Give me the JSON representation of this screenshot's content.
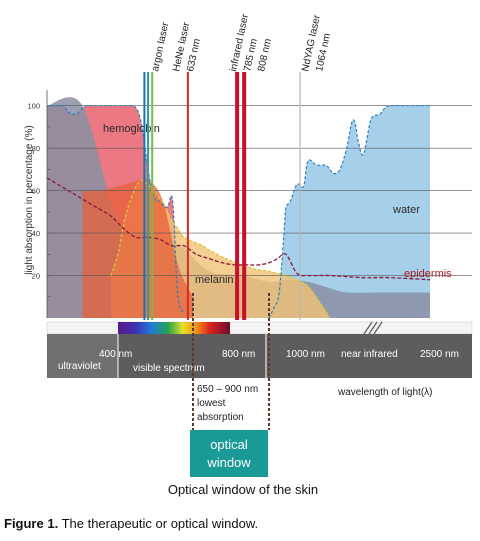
{
  "chart_data": {
    "type": "area",
    "ylabel": "light absorption in percentage (%)",
    "yticks": [
      20,
      40,
      60,
      80,
      100
    ],
    "ylim": [
      0,
      106
    ],
    "xlabel": "wavelength of light(λ)",
    "series": [
      {
        "name": "hemoglobin",
        "color": "#e8606c",
        "x": [
          200,
          210,
          220,
          230,
          240,
          245,
          250,
          255,
          260,
          270,
          280,
          290,
          300,
          310,
          320,
          330,
          340,
          350,
          360,
          370,
          380,
          390,
          400,
          410,
          420,
          430,
          440,
          450,
          460,
          470,
          480,
          490,
          500,
          510,
          520,
          530,
          540,
          550,
          560,
          570,
          575,
          580,
          585,
          590,
          595,
          600,
          605,
          610,
          615,
          620
        ],
        "y": [
          100,
          100,
          100,
          100,
          100,
          100,
          100,
          98,
          97,
          96,
          96,
          97,
          99,
          100,
          100,
          100,
          100,
          100,
          100,
          100,
          100,
          100,
          100,
          100,
          100,
          100,
          100,
          100,
          99,
          96,
          90,
          80,
          70,
          62,
          57,
          55,
          55,
          53,
          52,
          54,
          57,
          57,
          50,
          35,
          20,
          10,
          6,
          4,
          3,
          2
        ]
      },
      {
        "name": "melanin",
        "color": "#f3c276",
        "x": [
          380,
          400,
          420,
          440,
          460,
          470,
          480,
          490,
          500,
          520,
          540,
          560,
          580,
          600,
          620,
          650,
          680,
          700,
          750,
          800,
          850,
          900,
          950,
          1000,
          1050,
          1100,
          1150,
          1200
        ],
        "y": [
          20,
          30,
          45,
          55,
          62,
          64,
          65,
          64,
          63,
          60,
          56,
          52,
          46,
          42,
          38,
          36,
          34,
          32,
          28,
          25,
          23,
          22,
          21,
          20,
          18,
          15,
          8,
          0
        ]
      },
      {
        "name": "water",
        "color": "#9ccbe8",
        "x": [
          900,
          930,
          960,
          990,
          1000,
          1020,
          1050,
          1080,
          1100,
          1140,
          1180,
          1200,
          1220,
          1260,
          1300,
          1330,
          1350,
          1370,
          1400,
          1440,
          1460,
          1500,
          1550,
          1600,
          1700,
          1800,
          1900,
          2000
        ],
        "y": [
          0,
          5,
          12,
          42,
          52,
          55,
          63,
          62,
          74,
          72,
          72,
          70,
          68,
          70,
          80,
          92,
          92,
          83,
          77,
          92,
          95,
          96,
          99,
          100,
          100,
          100,
          100,
          100
        ]
      },
      {
        "name": "epidermis",
        "color": "#8b1a3a",
        "x": [
          200,
          260,
          320,
          380,
          420,
          460,
          500,
          540,
          580,
          620,
          660,
          700,
          740,
          780,
          820,
          860,
          900,
          950,
          1000,
          1050,
          1100,
          1200,
          1400,
          1600,
          2000
        ],
        "y": [
          66,
          60,
          54,
          48,
          42,
          38,
          38,
          37,
          34,
          34,
          30,
          28,
          26,
          25,
          25,
          25,
          26,
          28,
          30,
          21,
          20,
          20,
          19,
          19,
          18
        ]
      }
    ],
    "shading": [
      {
        "name": "grey-absorption",
        "color": "#8a8fa4",
        "x": [
          200,
          300,
          400,
          500,
          600,
          700,
          800,
          900,
          1000,
          1100,
          1200,
          1300,
          1500,
          1800,
          2000
        ],
        "y": [
          100,
          100,
          45,
          40,
          35,
          22,
          20,
          17,
          18,
          17,
          14,
          12,
          12,
          12,
          12
        ]
      },
      {
        "name": "red-absorption",
        "color": "#e8603a",
        "x": [
          300,
          350,
          400,
          450,
          500,
          550,
          600,
          650
        ],
        "y": [
          60,
          60,
          62,
          64,
          65,
          55,
          25,
          10
        ]
      }
    ],
    "lasers": [
      {
        "name": "argon laser",
        "nm": [
          488,
          514
        ],
        "colors": [
          "#1f6fb4",
          "#7ab94a"
        ]
      },
      {
        "name": "HeNe laser",
        "nm": [
          633
        ],
        "wavelength_label": "633 nm",
        "colors": [
          "#d62a2a"
        ]
      },
      {
        "name": "infrared laser",
        "nm": [
          785,
          808
        ],
        "wavelength_labels": [
          "785 nm",
          "808 nm"
        ],
        "colors": [
          "#c8102e",
          "#c8102e"
        ]
      },
      {
        "name": "NdYAG laser",
        "nm": [
          1064
        ],
        "wavelength_label": "1064 nm",
        "colors": [
          "#b8b8b8"
        ]
      }
    ],
    "spectrum_bar": {
      "ticks": [
        "400 nm",
        "800 nm",
        "1000 nm",
        "near infrared",
        "2500 nm"
      ],
      "regions": [
        "ultraviolet",
        "visible spectrum"
      ]
    },
    "optical_window": {
      "range_label": "650 – 900 nm",
      "note_line1": "lowest",
      "note_line2": "absorption",
      "box_line1": "optical",
      "box_line2": "window",
      "box_color": "#1a9a96",
      "caption": "Optical window of the skin"
    }
  },
  "figure_caption": {
    "label": "Figure 1.",
    "text": "The therapeutic or optical window."
  }
}
